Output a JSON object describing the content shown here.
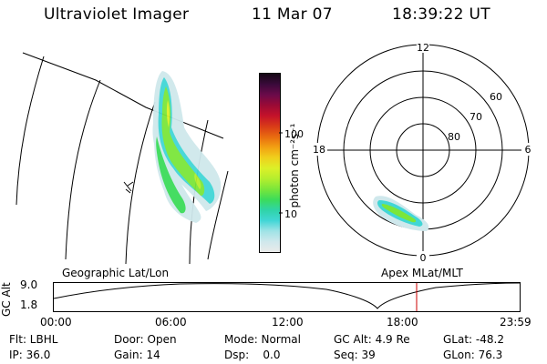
{
  "header": {
    "instrument": "Ultraviolet Imager",
    "date": "11 Mar 07",
    "time": "18:39:22 UT"
  },
  "geo_panel": {
    "label": "Geographic Lat/Lon"
  },
  "colorbar": {
    "unit_label": "photon cm⁻²s⁻¹",
    "ticks": [
      "100",
      "10"
    ],
    "colors": [
      "#eaeaea",
      "#cfe8ec",
      "#9fe3e6",
      "#41d6d6",
      "#2fd4a8",
      "#3cdc5a",
      "#7be63a",
      "#b5ee2e",
      "#dcf028",
      "#f0d01c",
      "#f2a012",
      "#e86a10",
      "#d83a18",
      "#c4122a",
      "#9a0a36",
      "#6a0a4a",
      "#3a0a3a",
      "#140814"
    ]
  },
  "polar": {
    "labels": {
      "noon": "12",
      "midnight": "0",
      "dawn": "6",
      "dusk": "18"
    },
    "lat_labels": [
      "60",
      "70",
      "80"
    ]
  },
  "timeline": {
    "y_label": "GC Alt",
    "y_ticks": [
      "9.0",
      "1.8"
    ],
    "x_ticks": [
      "00:00",
      "06:00",
      "12:00",
      "18:00",
      "23:59"
    ],
    "right_label": "Apex MLat/MLT",
    "marker_color": "#cc0000"
  },
  "info": {
    "filter": "Flt: LBHL",
    "door": "Door: Open",
    "mode": "Mode: Normal",
    "gc_alt": "GC Alt: 4.9 Re",
    "glat": "GLat: -48.2",
    "ip": "IP: 36.0",
    "gain": "Gain: 14",
    "dsp": "Dsp:    0.0",
    "seq": "Seq: 39",
    "glon": "GLon: 76.3"
  }
}
